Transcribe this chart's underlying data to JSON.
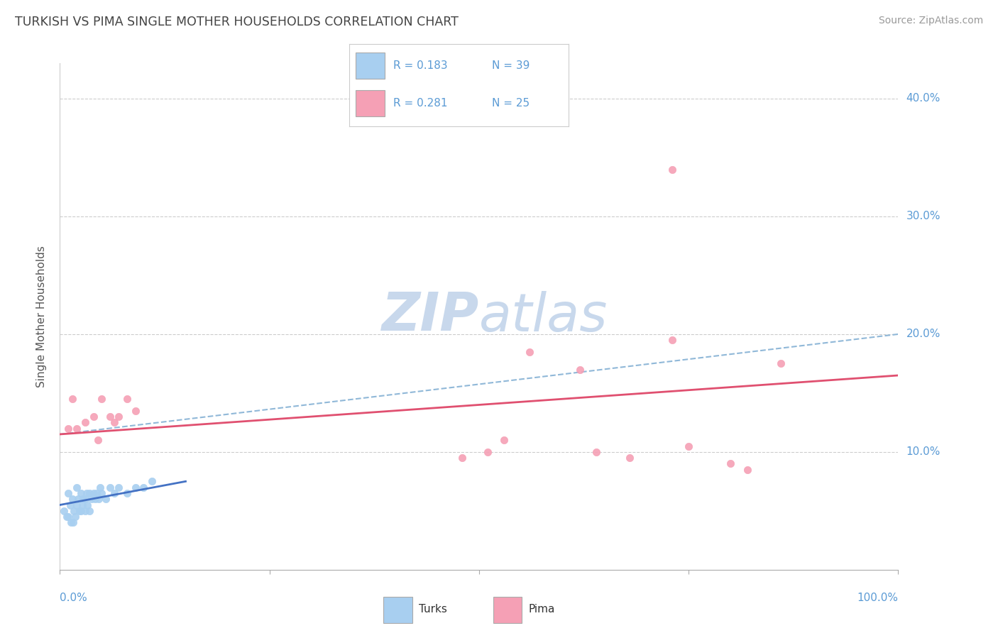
{
  "title": "TURKISH VS PIMA SINGLE MOTHER HOUSEHOLDS CORRELATION CHART",
  "source": "Source: ZipAtlas.com",
  "ylabel": "Single Mother Households",
  "xlim": [
    0,
    1.0
  ],
  "ylim": [
    0,
    0.43
  ],
  "yticks": [
    0.1,
    0.2,
    0.3,
    0.4
  ],
  "ytick_labels": [
    "10.0%",
    "20.0%",
    "30.0%",
    "40.0%"
  ],
  "turks_color": "#a8cff0",
  "pima_color": "#f5a0b5",
  "turks_line_color": "#4472c4",
  "pima_line_color": "#e05070",
  "dash_line_color": "#90b8d8",
  "watermark_text": "ZIPatlas",
  "watermark_color": "#d5e5f5",
  "title_color": "#444444",
  "source_color": "#999999",
  "tick_color": "#5b9bd5",
  "turks_x": [
    0.005,
    0.008,
    0.01,
    0.01,
    0.012,
    0.013,
    0.015,
    0.016,
    0.017,
    0.018,
    0.02,
    0.02,
    0.022,
    0.023,
    0.025,
    0.025,
    0.027,
    0.028,
    0.03,
    0.03,
    0.032,
    0.033,
    0.035,
    0.035,
    0.038,
    0.04,
    0.042,
    0.044,
    0.046,
    0.048,
    0.05,
    0.055,
    0.06,
    0.065,
    0.07,
    0.08,
    0.09,
    0.1,
    0.11
  ],
  "turks_y": [
    0.05,
    0.045,
    0.065,
    0.045,
    0.055,
    0.04,
    0.06,
    0.04,
    0.05,
    0.045,
    0.07,
    0.055,
    0.06,
    0.05,
    0.065,
    0.05,
    0.055,
    0.06,
    0.06,
    0.05,
    0.065,
    0.055,
    0.065,
    0.05,
    0.06,
    0.065,
    0.06,
    0.065,
    0.06,
    0.07,
    0.065,
    0.06,
    0.07,
    0.065,
    0.07,
    0.065,
    0.07,
    0.07,
    0.075
  ],
  "pima_x": [
    0.01,
    0.015,
    0.02,
    0.03,
    0.04,
    0.045,
    0.05,
    0.06,
    0.065,
    0.07,
    0.08,
    0.09,
    0.48,
    0.51,
    0.53,
    0.56,
    0.62,
    0.64,
    0.68,
    0.73,
    0.75,
    0.8,
    0.82,
    0.86,
    0.73
  ],
  "pima_y": [
    0.12,
    0.145,
    0.12,
    0.125,
    0.13,
    0.11,
    0.145,
    0.13,
    0.125,
    0.13,
    0.145,
    0.135,
    0.095,
    0.1,
    0.11,
    0.185,
    0.17,
    0.1,
    0.095,
    0.195,
    0.105,
    0.09,
    0.085,
    0.175,
    0.34
  ],
  "pima_trend_x0": 0.0,
  "pima_trend_y0": 0.115,
  "pima_trend_x1": 1.0,
  "pima_trend_y1": 0.165,
  "turks_trend_x0": 0.0,
  "turks_trend_y0": 0.055,
  "turks_trend_x1": 0.15,
  "turks_trend_y1": 0.075,
  "dash_trend_x0": 0.0,
  "dash_trend_y0": 0.115,
  "dash_trend_x1": 1.0,
  "dash_trend_y1": 0.2
}
